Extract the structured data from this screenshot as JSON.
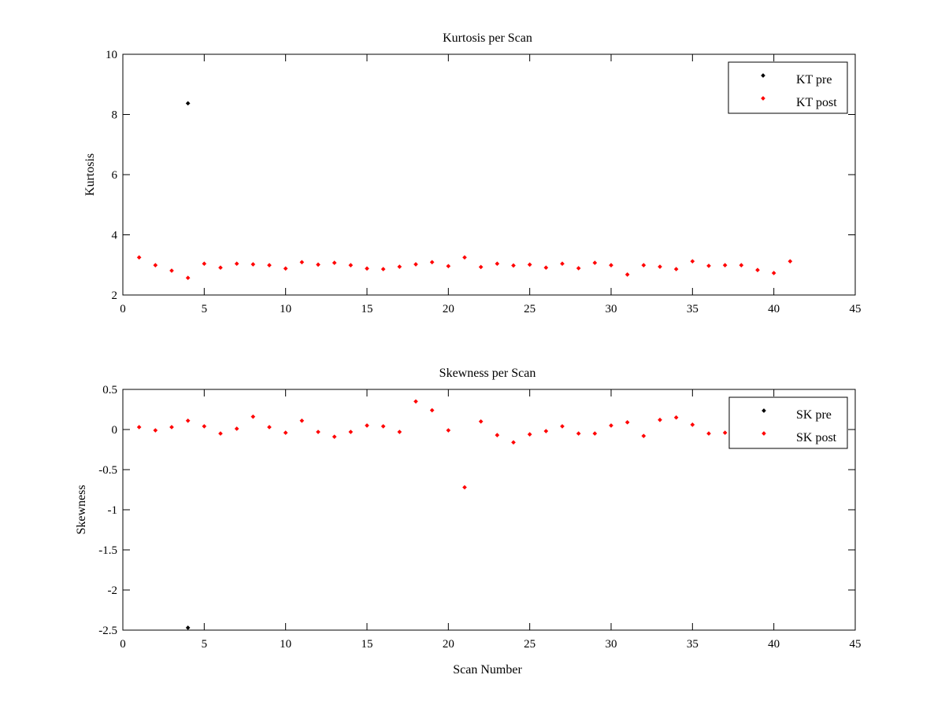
{
  "chart_data": [
    {
      "type": "scatter",
      "title": "Kurtosis per Scan",
      "xlabel": "",
      "ylabel": "Kurtosis",
      "xlim": [
        0,
        45
      ],
      "ylim": [
        2,
        10
      ],
      "xticks": [
        0,
        5,
        10,
        15,
        20,
        25,
        30,
        35,
        40,
        45
      ],
      "yticks": [
        2,
        4,
        6,
        8,
        10
      ],
      "grid": false,
      "legend_position": "top-right",
      "series": [
        {
          "name": "KT pre",
          "color": "#000000",
          "x": [
            4
          ],
          "y": [
            8.37
          ]
        },
        {
          "name": "KT post",
          "color": "#ff0000",
          "x": [
            1,
            2,
            3,
            4,
            5,
            6,
            7,
            8,
            9,
            10,
            11,
            12,
            13,
            14,
            15,
            16,
            17,
            18,
            19,
            20,
            21,
            22,
            23,
            24,
            25,
            26,
            27,
            28,
            29,
            30,
            31,
            32,
            33,
            34,
            35,
            36,
            37,
            38,
            39,
            40,
            41
          ],
          "y": [
            3.25,
            2.99,
            2.81,
            2.57,
            3.04,
            2.91,
            3.04,
            3.02,
            2.99,
            2.88,
            3.09,
            3.01,
            3.07,
            2.99,
            2.88,
            2.86,
            2.94,
            3.02,
            3.09,
            2.96,
            3.25,
            2.93,
            3.04,
            2.98,
            3.01,
            2.91,
            3.04,
            2.89,
            3.07,
            2.99,
            2.68,
            2.99,
            2.94,
            2.86,
            3.12,
            2.97,
            2.99,
            2.99,
            2.83,
            2.73,
            3.12
          ]
        }
      ]
    },
    {
      "type": "scatter",
      "title": "Skewness per Scan",
      "xlabel": "Scan Number",
      "ylabel": "Skewness",
      "xlim": [
        0,
        45
      ],
      "ylim": [
        -2.5,
        0.5
      ],
      "xticks": [
        0,
        5,
        10,
        15,
        20,
        25,
        30,
        35,
        40,
        45
      ],
      "yticks": [
        -2.5,
        -2,
        -1.5,
        -1,
        -0.5,
        0,
        0.5
      ],
      "grid": false,
      "legend_position": "top-right",
      "series": [
        {
          "name": "SK pre",
          "color": "#000000",
          "x": [
            4
          ],
          "y": [
            -2.47
          ]
        },
        {
          "name": "SK post",
          "color": "#ff0000",
          "x": [
            1,
            2,
            3,
            4,
            5,
            6,
            7,
            8,
            9,
            10,
            11,
            12,
            13,
            14,
            15,
            16,
            17,
            18,
            19,
            20,
            21,
            22,
            23,
            24,
            25,
            26,
            27,
            28,
            29,
            30,
            31,
            32,
            33,
            34,
            35,
            36,
            37,
            38,
            39,
            40,
            41
          ],
          "y": [
            0.03,
            -0.01,
            0.03,
            0.11,
            0.04,
            -0.05,
            0.01,
            0.16,
            0.03,
            -0.04,
            0.11,
            -0.03,
            -0.09,
            -0.03,
            0.05,
            0.04,
            -0.03,
            0.35,
            0.24,
            -0.01,
            -0.72,
            0.1,
            -0.07,
            -0.16,
            -0.06,
            -0.02,
            0.04,
            -0.05,
            -0.05,
            0.05,
            0.09,
            -0.08,
            0.12,
            0.15,
            0.06,
            -0.05,
            -0.04,
            -0.02,
            0.02,
            -0.06,
            0.04
          ]
        }
      ]
    }
  ]
}
